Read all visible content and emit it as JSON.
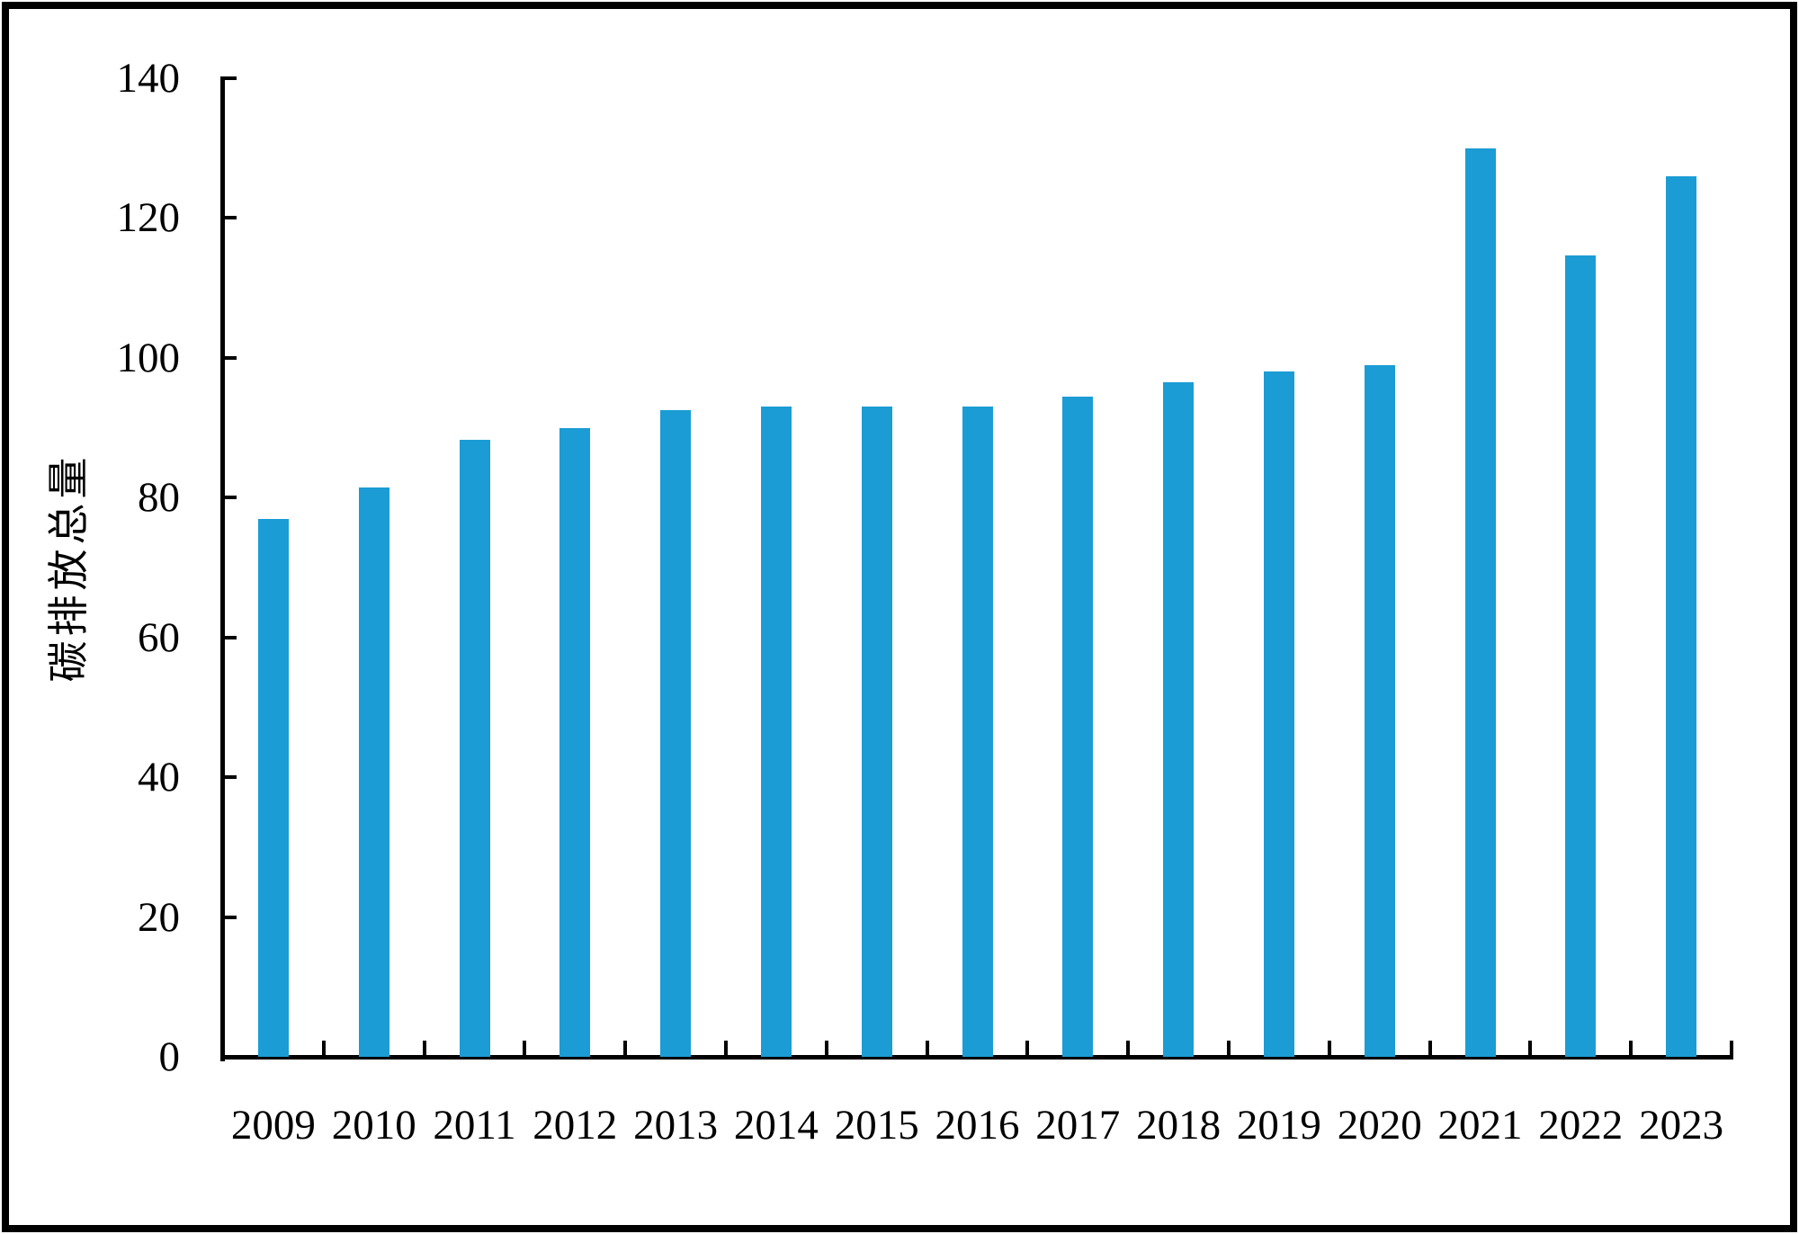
{
  "chart_data": {
    "type": "bar",
    "title": "",
    "xlabel": "",
    "ylabel": "碳排放总量",
    "categories": [
      "2009",
      "2010",
      "2011",
      "2012",
      "2013",
      "2014",
      "2015",
      "2016",
      "2017",
      "2018",
      "2019",
      "2020",
      "2021",
      "2022",
      "2023"
    ],
    "values": [
      77,
      81.5,
      88.3,
      90,
      92.5,
      93,
      93,
      93,
      94.5,
      96.5,
      98,
      99,
      130,
      114.7,
      126
    ],
    "ylim": [
      0,
      140
    ],
    "ytick_step": 20,
    "ytick_labels": [
      "0",
      "20",
      "40",
      "60",
      "80",
      "100",
      "120",
      "140"
    ],
    "bar_color": "#1B9CD4",
    "axis_color": "#000000",
    "frame_color": "#000000",
    "background_color": "#FFFFFF",
    "grid": false,
    "legend": false,
    "tick_direction": "in"
  }
}
